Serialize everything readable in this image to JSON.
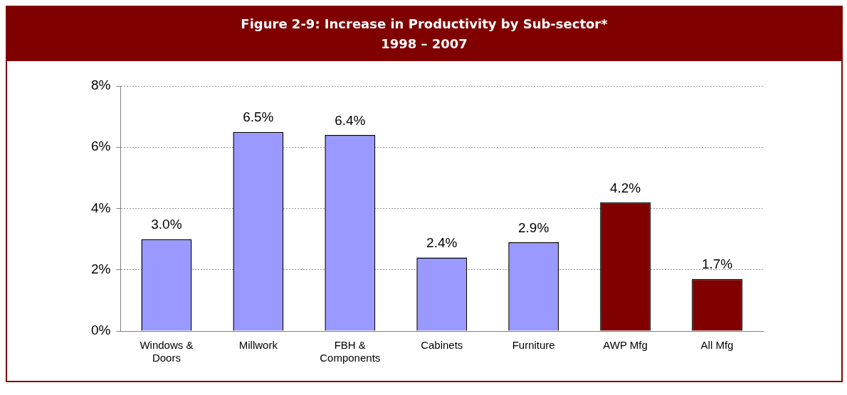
{
  "chart_data": {
    "type": "bar",
    "title": "Figure 2-9: Increase in Productivity by Sub-sector*",
    "subtitle": "1998 – 2007",
    "categories": [
      "Windows & Doors",
      "Millwork",
      "FBH & Components",
      "Cabinets",
      "Furniture",
      "AWP Mfg",
      "All Mfg"
    ],
    "values": [
      3.0,
      6.5,
      6.4,
      2.4,
      2.9,
      4.2,
      1.7
    ],
    "colors": [
      "#9999ff",
      "#9999ff",
      "#9999ff",
      "#9999ff",
      "#9999ff",
      "#800000",
      "#800000"
    ],
    "value_labels": [
      "3.0%",
      "6.5%",
      "6.4%",
      "2.4%",
      "2.9%",
      "4.2%",
      "1.7%"
    ],
    "ylim": [
      0,
      8
    ],
    "yticks": [
      {
        "value": 0,
        "label": "0%"
      },
      {
        "value": 2,
        "label": "2%"
      },
      {
        "value": 4,
        "label": "4%"
      },
      {
        "value": 6,
        "label": "6%"
      },
      {
        "value": 8,
        "label": "8%"
      }
    ],
    "grid": "y"
  }
}
